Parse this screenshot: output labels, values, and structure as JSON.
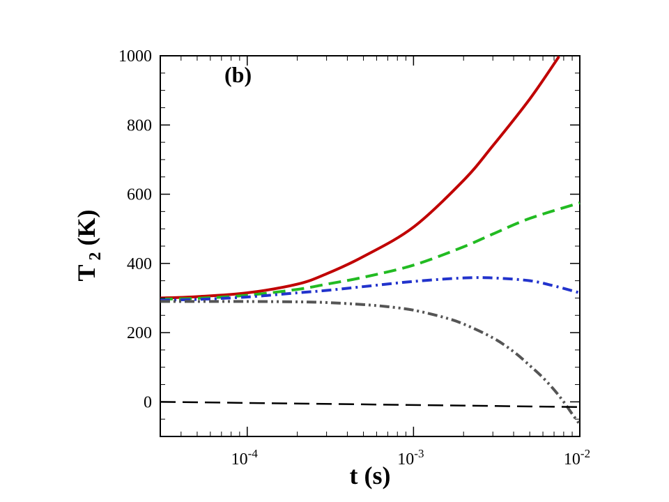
{
  "chart_data": {
    "type": "line",
    "title": "",
    "panel_label": "(b)",
    "xlabel": "t (s)",
    "ylabel": {
      "main": "T",
      "sub": "2",
      "unit": "(K)"
    },
    "x_scale": "log",
    "xlim": [
      3e-05,
      0.01
    ],
    "ylim": [
      -100,
      1000
    ],
    "x_ticks": [
      {
        "value": 0.0001,
        "base": "10",
        "exp": "-4"
      },
      {
        "value": 0.001,
        "base": "10",
        "exp": "-3"
      },
      {
        "value": 0.01,
        "base": "10",
        "exp": "-2"
      }
    ],
    "y_ticks": [
      0,
      200,
      400,
      600,
      800,
      1000
    ],
    "series": [
      {
        "name": "red-solid",
        "color": "#c00000",
        "style": "solid",
        "x": [
          3e-05,
          5e-05,
          0.0001,
          0.0002,
          0.0003,
          0.0005,
          0.001,
          0.002,
          0.003,
          0.005,
          0.0075
        ],
        "y": [
          300,
          304,
          315,
          340,
          370,
          420,
          505,
          640,
          740,
          875,
          998
        ]
      },
      {
        "name": "green-dashed",
        "color": "#22bb22",
        "style": "dashed",
        "x": [
          3e-05,
          5e-05,
          0.0001,
          0.0002,
          0.0003,
          0.0005,
          0.001,
          0.002,
          0.003,
          0.005,
          0.01
        ],
        "y": [
          297,
          299,
          308,
          325,
          340,
          360,
          395,
          448,
          485,
          530,
          575
        ]
      },
      {
        "name": "blue-dashdot",
        "color": "#2233cc",
        "style": "dashdot",
        "x": [
          3e-05,
          5e-05,
          0.0001,
          0.0002,
          0.0003,
          0.0005,
          0.001,
          0.002,
          0.003,
          0.005,
          0.007,
          0.01
        ],
        "y": [
          294,
          296,
          303,
          315,
          322,
          333,
          348,
          358,
          358,
          350,
          335,
          315
        ]
      },
      {
        "name": "gray-dashdotdot",
        "color": "#555555",
        "style": "dashdotdot",
        "x": [
          3e-05,
          5e-05,
          0.0001,
          0.0002,
          0.0003,
          0.0005,
          0.0007,
          0.001,
          0.0015,
          0.002,
          0.003,
          0.004,
          0.005,
          0.006,
          0.007,
          0.008,
          0.009,
          0.01
        ],
        "y": [
          290,
          290,
          290,
          289,
          287,
          281,
          275,
          265,
          245,
          225,
          185,
          145,
          105,
          70,
          35,
          0,
          -35,
          -65
        ]
      },
      {
        "name": "black-dashed-reference",
        "color": "#000000",
        "style": "longdash",
        "x": [
          3e-05,
          0.01
        ],
        "y": [
          0,
          -15
        ]
      }
    ]
  }
}
